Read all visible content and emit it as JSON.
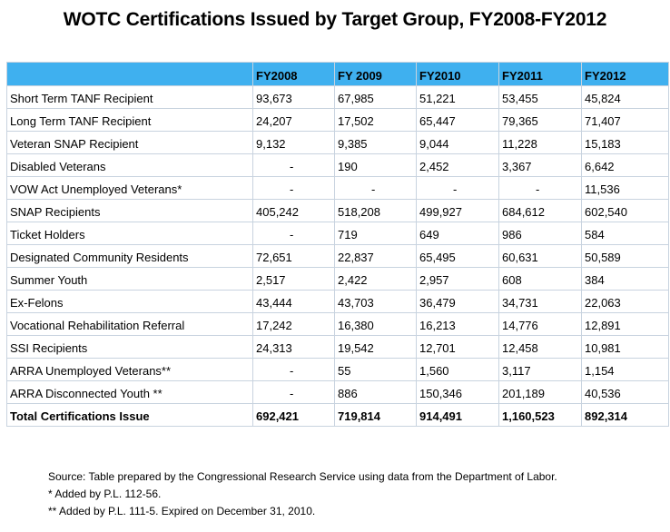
{
  "title": "WOTC Certifications Issued by Target Group, FY2008-FY2012",
  "table": {
    "columns": [
      "",
      "FY2008",
      "FY 2009",
      "FY2010",
      "FY2011",
      "FY2012"
    ],
    "rows": [
      {
        "label": "Short Term TANF Recipient",
        "values": [
          "93,673",
          "67,985",
          "51,221",
          "53,455",
          "45,824"
        ]
      },
      {
        "label": "Long Term TANF Recipient",
        "values": [
          "24,207",
          "17,502",
          "65,447",
          "79,365",
          "71,407"
        ]
      },
      {
        "label": "Veteran SNAP Recipient",
        "values": [
          "9,132",
          "9,385",
          "9,044",
          "11,228",
          "15,183"
        ]
      },
      {
        "label": "Disabled Veterans",
        "values": [
          "-",
          "190",
          "2,452",
          "3,367",
          "6,642"
        ]
      },
      {
        "label": "VOW Act Unemployed Veterans*",
        "values": [
          "-",
          "-",
          "-",
          "-",
          "11,536"
        ]
      },
      {
        "label": "SNAP Recipients",
        "values": [
          "405,242",
          "518,208",
          "499,927",
          "684,612",
          "602,540"
        ]
      },
      {
        "label": "Ticket Holders",
        "values": [
          "-",
          "719",
          "649",
          "986",
          "584"
        ]
      },
      {
        "label": "Designated Community Residents",
        "values": [
          "72,651",
          "22,837",
          "65,495",
          "60,631",
          "50,589"
        ]
      },
      {
        "label": "Summer Youth",
        "values": [
          "2,517",
          "2,422",
          "2,957",
          "608",
          "384"
        ]
      },
      {
        "label": "Ex-Felons",
        "values": [
          "43,444",
          "43,703",
          "36,479",
          "34,731",
          "22,063"
        ]
      },
      {
        "label": "Vocational Rehabilitation Referral",
        "values": [
          "17,242",
          "16,380",
          "16,213",
          "14,776",
          "12,891"
        ]
      },
      {
        "label": "SSI Recipients",
        "values": [
          "24,313",
          "19,542",
          "12,701",
          "12,458",
          "10,981"
        ]
      },
      {
        "label": "ARRA Unemployed Veterans**",
        "values": [
          "-",
          "55",
          "1,560",
          "3,117",
          "1,154"
        ]
      },
      {
        "label": "ARRA Disconnected Youth **",
        "values": [
          "-",
          "886",
          "150,346",
          "201,189",
          "40,536"
        ]
      }
    ],
    "total": {
      "label": "Total Certifications Issue",
      "values": [
        "692,421",
        "719,814",
        "914,491",
        "1,160,523",
        "892,314"
      ]
    }
  },
  "notes": [
    "Source: Table prepared by the Congressional Research Service using data from the Department of Labor.",
    "* Added by P.L. 112-56.",
    "** Added by P.L. 111-5.  Expired on December 31, 2010."
  ]
}
